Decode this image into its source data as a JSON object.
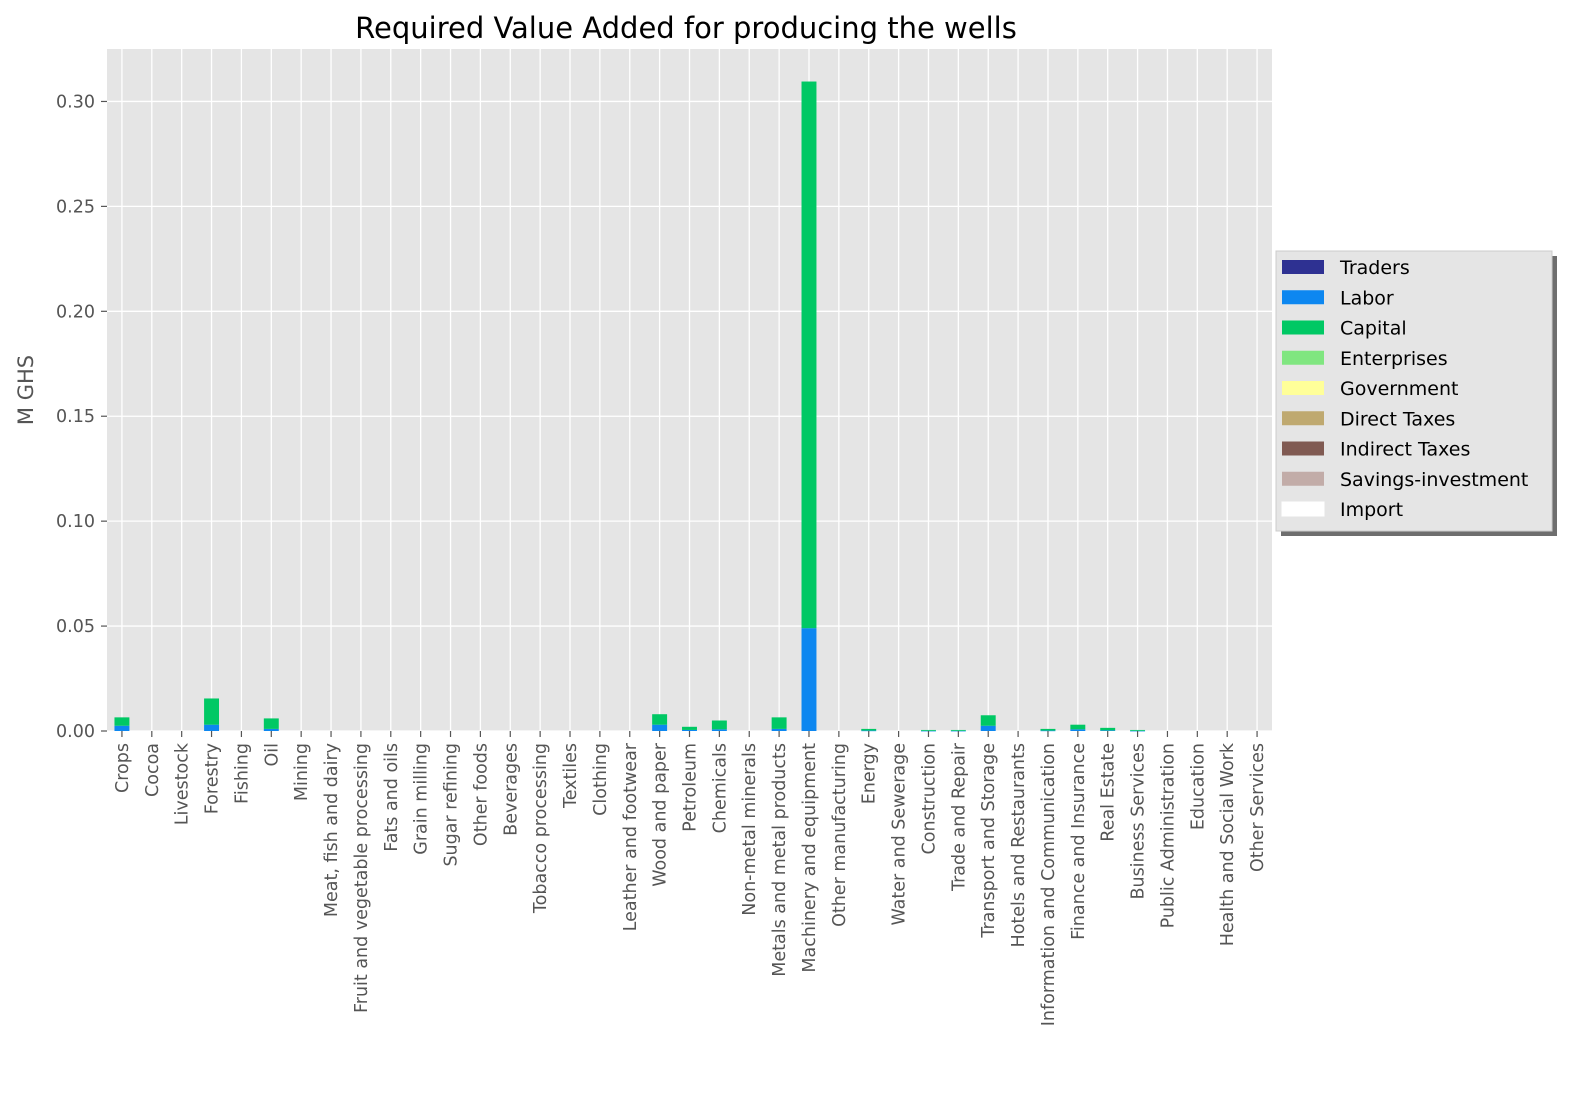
{
  "chart_data": {
    "type": "bar",
    "stacked": true,
    "title": "Required Value Added for producing the wells",
    "xlabel": "",
    "ylabel": "M GHS",
    "ylim": [
      0,
      0.325
    ],
    "yticks": [
      "0.00",
      "0.05",
      "0.10",
      "0.15",
      "0.20",
      "0.25",
      "0.30"
    ],
    "grid": true,
    "legend_position": "right",
    "categories": [
      "Crops",
      "Cocoa",
      "Livestock",
      "Forestry",
      "Fishing",
      "Oil",
      "Mining",
      "Meat, fish and dairy",
      "Fruit and vegetable processing",
      "Fats and oils",
      "Grain milling",
      "Sugar refining",
      "Other foods",
      "Beverages",
      "Tobacco processing",
      "Textiles",
      "Clothing",
      "Leather and footwear",
      "Wood and paper",
      "Petroleum",
      "Chemicals",
      "Non-metal minerals",
      "Metals and metal products",
      "Machinery and equipment",
      "Other manufacturing",
      "Energy",
      "Water and Sewerage",
      "Construction",
      "Trade and Repair",
      "Transport and Storage",
      "Hotels and Restaurants",
      "Information and Communication",
      "Finance and Insurance",
      "Real Estate",
      "Business Services",
      "Public Administration",
      "Education",
      "Health and Social Work",
      "Other Services"
    ],
    "series": [
      {
        "name": "Traders",
        "color": "#2e3192",
        "values": [
          0,
          0,
          0,
          0,
          0,
          0,
          0,
          0,
          0,
          0,
          0,
          0,
          0,
          0,
          0,
          0,
          0,
          0,
          0,
          0,
          0,
          0,
          0,
          0,
          0,
          0,
          0,
          0,
          0,
          0,
          0,
          0,
          0,
          0,
          0,
          0,
          0,
          0,
          0
        ]
      },
      {
        "name": "Labor",
        "color": "#0d87f0",
        "values": [
          0.0025,
          0,
          0,
          0.003,
          0,
          0.001,
          0,
          0,
          0,
          0,
          0,
          0,
          0,
          0,
          0,
          0,
          0,
          0,
          0.003,
          0.0005,
          0.0008,
          0,
          0.001,
          0.049,
          0,
          0.0002,
          0,
          0.0001,
          0.0001,
          0.0025,
          0,
          0.0002,
          0.0008,
          0.0003,
          0.0001,
          0,
          0,
          0,
          0
        ]
      },
      {
        "name": "Capital",
        "color": "#00c864",
        "values": [
          0.004,
          0,
          0,
          0.0125,
          0,
          0.005,
          0,
          0,
          0,
          0,
          0,
          0,
          0,
          0,
          0,
          0,
          0,
          0,
          0.005,
          0.0015,
          0.0042,
          0,
          0.0055,
          0.2605,
          0,
          0.0008,
          0,
          0.0004,
          0.0004,
          0.005,
          0,
          0.0008,
          0.0022,
          0.0012,
          0.0004,
          0,
          0,
          0,
          0
        ]
      },
      {
        "name": "Enterprises",
        "color": "#80e680",
        "values": [
          0,
          0,
          0,
          0,
          0,
          0,
          0,
          0,
          0,
          0,
          0,
          0,
          0,
          0,
          0,
          0,
          0,
          0,
          0,
          0,
          0,
          0,
          0,
          0,
          0,
          0,
          0,
          0,
          0,
          0,
          0,
          0,
          0,
          0,
          0,
          0,
          0,
          0,
          0
        ]
      },
      {
        "name": "Government",
        "color": "#ffff99",
        "values": [
          0,
          0,
          0,
          0,
          0,
          0,
          0,
          0,
          0,
          0,
          0,
          0,
          0,
          0,
          0,
          0,
          0,
          0,
          0,
          0,
          0,
          0,
          0,
          0,
          0,
          0,
          0,
          0,
          0,
          0,
          0,
          0,
          0,
          0,
          0,
          0,
          0,
          0,
          0
        ]
      },
      {
        "name": "Direct Taxes",
        "color": "#bfa970",
        "values": [
          0,
          0,
          0,
          0,
          0,
          0,
          0,
          0,
          0,
          0,
          0,
          0,
          0,
          0,
          0,
          0,
          0,
          0,
          0,
          0,
          0,
          0,
          0,
          0,
          0,
          0,
          0,
          0,
          0,
          0,
          0,
          0,
          0,
          0,
          0,
          0,
          0,
          0,
          0
        ]
      },
      {
        "name": "Indirect Taxes",
        "color": "#805a52",
        "values": [
          0,
          0,
          0,
          0,
          0,
          0,
          0,
          0,
          0,
          0,
          0,
          0,
          0,
          0,
          0,
          0,
          0,
          0,
          0,
          0,
          0,
          0,
          0,
          0,
          0,
          0,
          0,
          0,
          0,
          0,
          0,
          0,
          0,
          0,
          0,
          0,
          0,
          0,
          0
        ]
      },
      {
        "name": "Savings-investment",
        "color": "#c2aca8",
        "values": [
          0,
          0,
          0,
          0,
          0,
          0,
          0,
          0,
          0,
          0,
          0,
          0,
          0,
          0,
          0,
          0,
          0,
          0,
          0,
          0,
          0,
          0,
          0,
          0,
          0,
          0,
          0,
          0,
          0,
          0,
          0,
          0,
          0,
          0,
          0,
          0,
          0,
          0,
          0
        ]
      },
      {
        "name": "Import",
        "color": "#ffffff",
        "values": [
          0,
          0,
          0,
          0,
          0,
          0,
          0,
          0,
          0,
          0,
          0,
          0,
          0,
          0,
          0,
          0,
          0,
          0,
          0,
          0,
          0,
          0,
          0,
          0,
          0,
          0,
          0,
          0,
          0,
          0,
          0,
          0,
          0,
          0,
          0,
          0,
          0,
          0,
          0
        ]
      }
    ]
  },
  "style": {
    "plot_background": "#e5e5e5",
    "grid_color": "#ffffff",
    "legend_background": "#e5e5e5",
    "legend_border": "#cccccc"
  }
}
